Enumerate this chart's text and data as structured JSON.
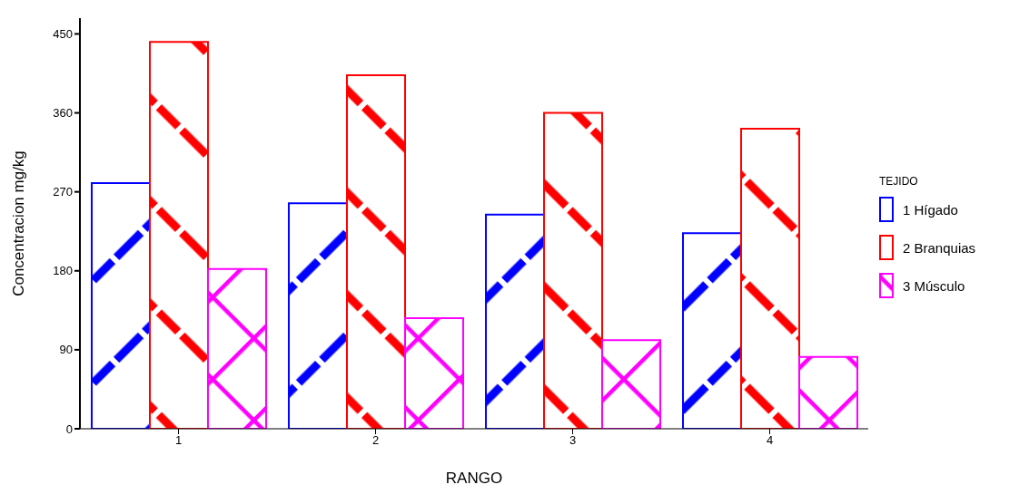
{
  "chart_data": {
    "type": "bar",
    "xlabel": "RANGO",
    "ylabel": "Concentracion mg/kg",
    "legend_title": "TEJIDO",
    "legend": "right",
    "categories": [
      "1",
      "2",
      "3",
      "4"
    ],
    "series": [
      {
        "name": "1 Hígado",
        "color": "#0000ff",
        "values": [
          280,
          257,
          244,
          223
        ]
      },
      {
        "name": "2 Branquias",
        "color": "#ff0000",
        "values": [
          441,
          403,
          360,
          342
        ]
      },
      {
        "name": "3 Músculo",
        "color": "#ff00ff",
        "values": [
          182,
          126,
          101,
          82
        ]
      }
    ],
    "ylim": [
      0,
      468
    ],
    "yticks": [
      0,
      90,
      180,
      270,
      360,
      450
    ],
    "grid": false
  }
}
